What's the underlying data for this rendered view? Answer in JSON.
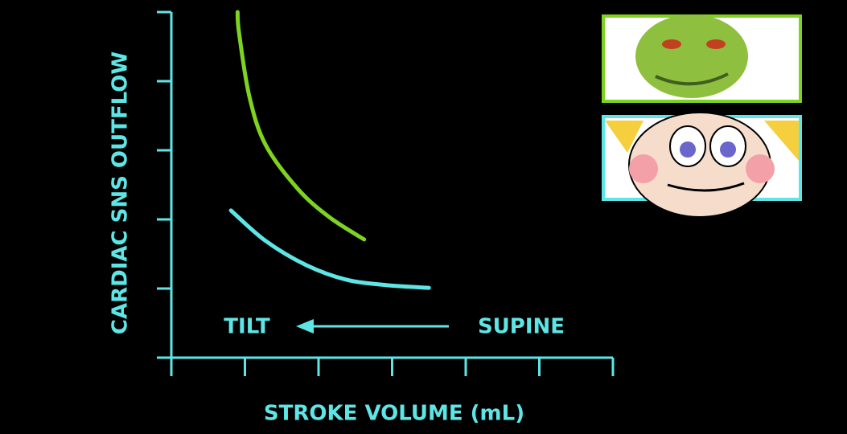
{
  "chart_data": {
    "type": "line",
    "x_label": "STROKE VOLUME (mL)",
    "y_label": "CARDIAC SNS OUTFLOW",
    "annotations": [
      "TILT",
      "SUPINE"
    ],
    "axis_color": "#5ee6e6",
    "xlim": [
      0,
      6
    ],
    "xticks": [
      0,
      1,
      2,
      3,
      4,
      5,
      6
    ],
    "ylim": [
      0,
      5
    ],
    "yticks": [
      0,
      1,
      2,
      3,
      4,
      5
    ],
    "series": [
      {
        "color": "#7ed321",
        "x": [
          0.9,
          0.92,
          1.06,
          1.28,
          1.72,
          2.15,
          2.62
        ],
        "values": [
          5.0,
          4.7,
          3.78,
          3.08,
          2.44,
          2.03,
          1.71
        ]
      },
      {
        "color": "#5ee6e6",
        "x": [
          0.81,
          1.28,
          1.83,
          2.37,
          2.92,
          3.5
        ],
        "values": [
          2.13,
          1.69,
          1.34,
          1.13,
          1.05,
          1.01
        ]
      }
    ]
  }
}
